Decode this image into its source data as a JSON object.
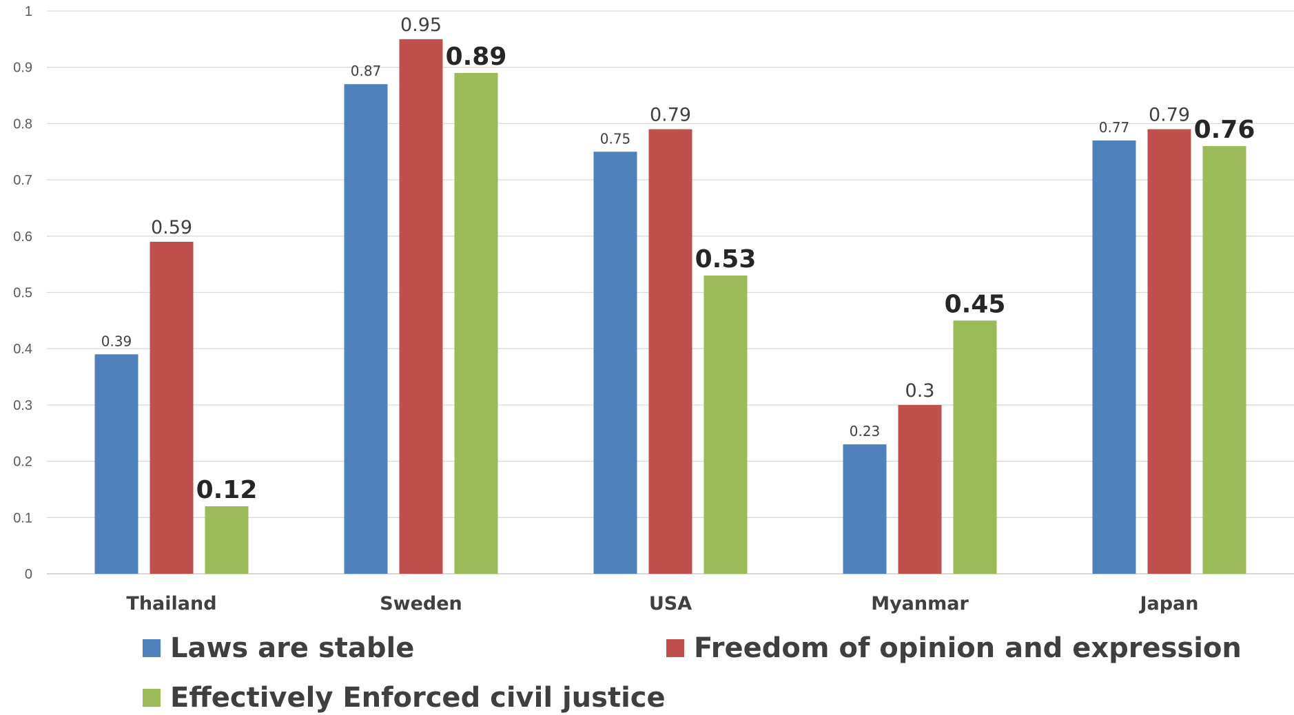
{
  "chart_data": {
    "type": "bar",
    "categories": [
      "Thailand",
      "Sweden",
      "USA",
      "Myanmar",
      "Japan"
    ],
    "series": [
      {
        "name": "Laws are stable",
        "values": [
          0.39,
          0.87,
          0.75,
          0.23,
          0.77
        ],
        "color": "#4f81bd"
      },
      {
        "name": "Freedom of opinion and expression",
        "values": [
          0.59,
          0.95,
          0.79,
          0.3,
          0.79
        ],
        "color": "#c0504d"
      },
      {
        "name": "Effectively Enforced civil justice",
        "values": [
          0.12,
          0.89,
          0.53,
          0.45,
          0.76
        ],
        "color": "#9bbb59"
      }
    ],
    "ylim": [
      0,
      1
    ],
    "yticks": [
      "0",
      "0.1",
      "0.2",
      "0.3",
      "0.4",
      "0.5",
      "0.6",
      "0.7",
      "0.8",
      "0.9",
      "1"
    ],
    "grid": true,
    "legend_position": "bottom",
    "xlabel": "",
    "ylabel": ""
  }
}
